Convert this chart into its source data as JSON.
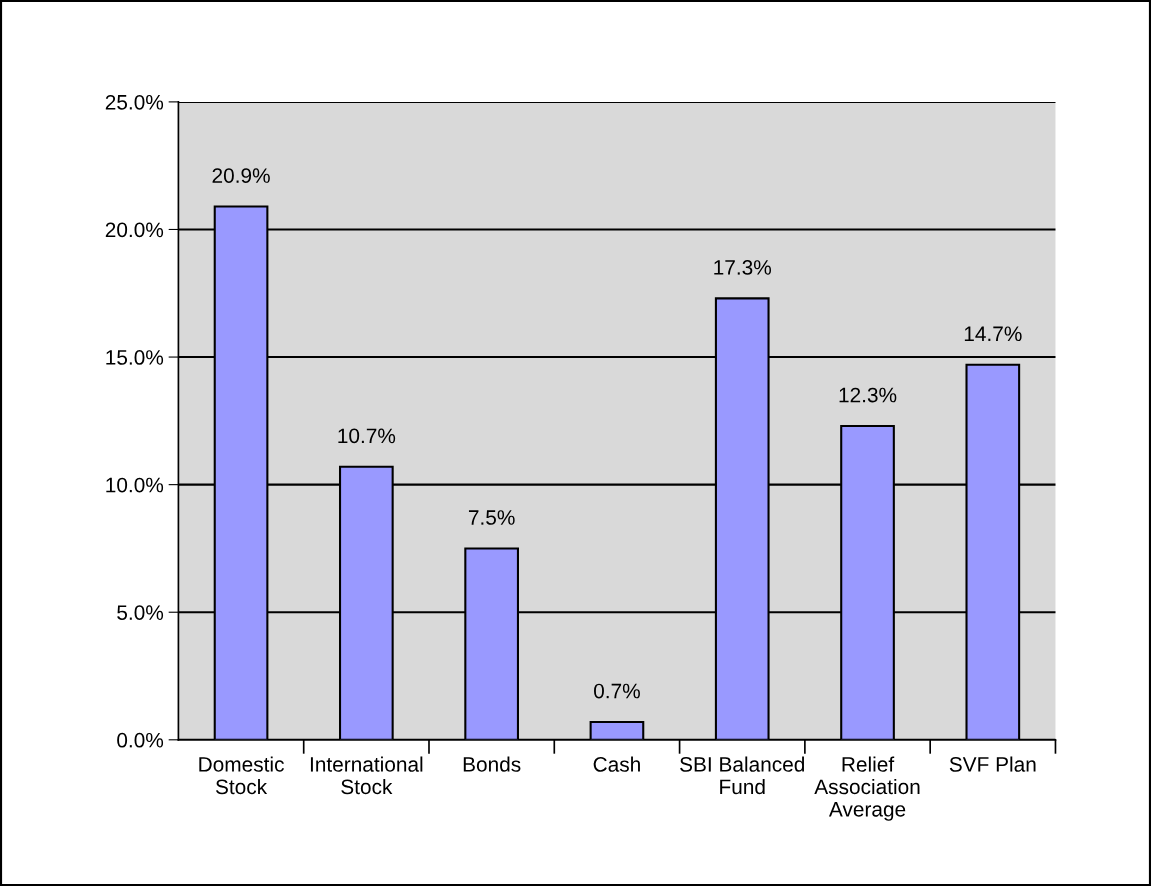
{
  "chart_data": {
    "type": "bar",
    "categories": [
      "Domestic\nStock",
      "International\nStock",
      "Bonds",
      "Cash",
      "SBI Balanced\nFund",
      "Relief\nAssociation\nAverage",
      "SVF Plan"
    ],
    "values": [
      20.9,
      10.7,
      7.5,
      0.7,
      17.3,
      12.3,
      14.7
    ],
    "value_labels": [
      "20.9%",
      "10.7%",
      "7.5%",
      "0.7%",
      "17.3%",
      "12.3%",
      "14.7%"
    ],
    "color": "#9999ff",
    "ylim": [
      0,
      25
    ],
    "yticks": [
      {
        "value": 0,
        "label": "0.0%"
      },
      {
        "value": 5,
        "label": "5.0%"
      },
      {
        "value": 10,
        "label": "10.0%"
      },
      {
        "value": 15,
        "label": "15.0%"
      },
      {
        "value": 20,
        "label": "20.0%"
      },
      {
        "value": 25,
        "label": "25.0%"
      }
    ],
    "grid": "y",
    "legend": false
  }
}
